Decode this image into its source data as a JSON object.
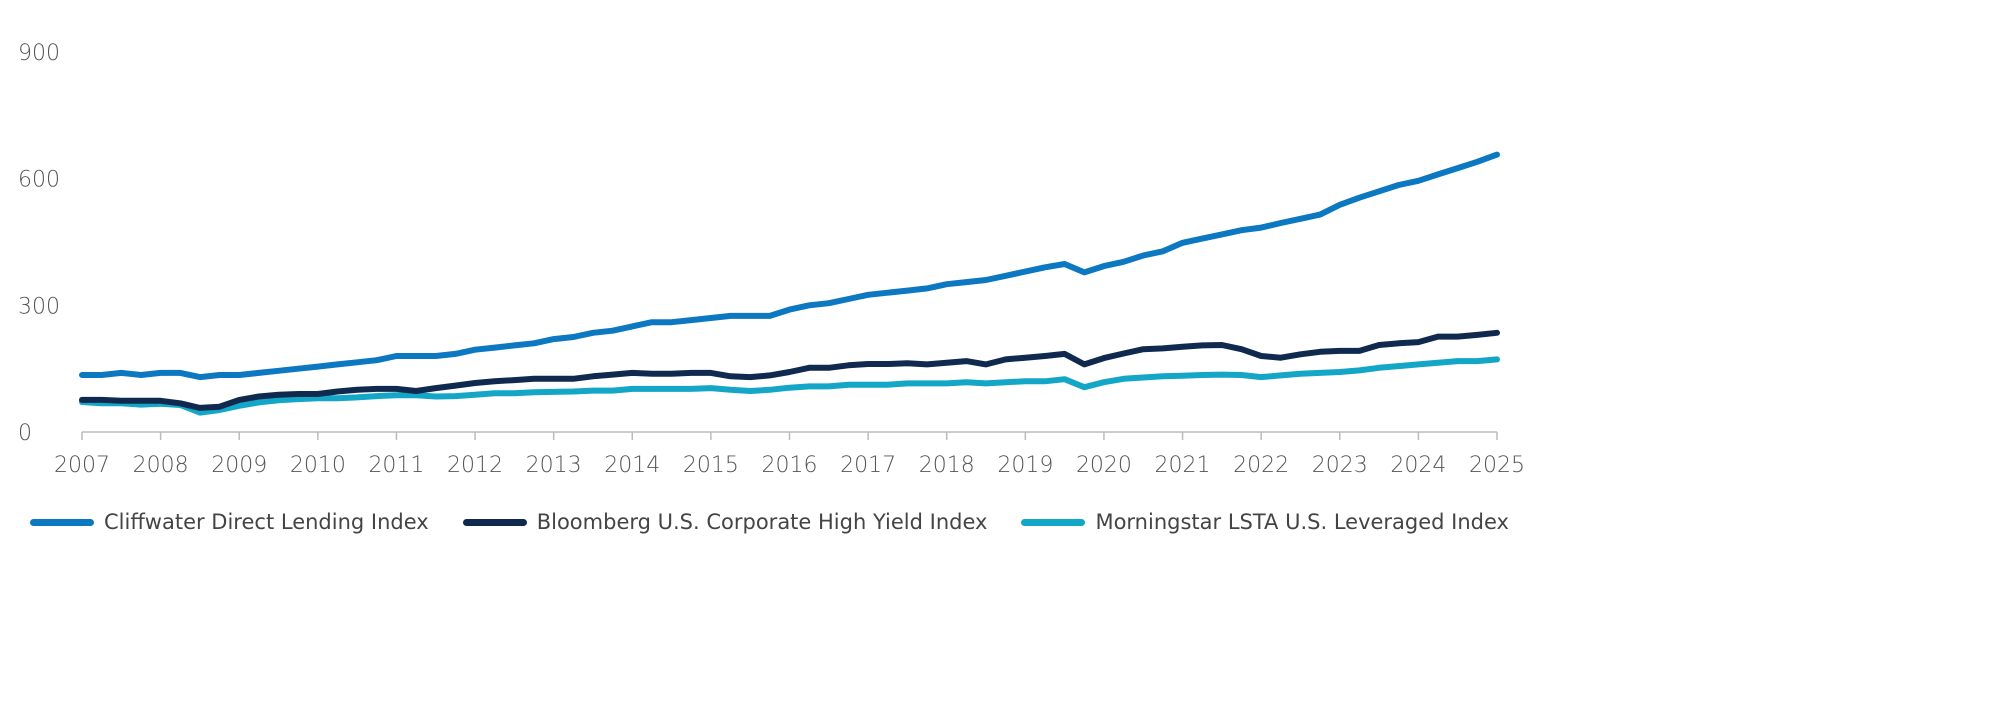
{
  "chart_data": {
    "type": "line",
    "title": "",
    "xlabel": "",
    "ylabel": "",
    "ylim": [
      0,
      900
    ],
    "yticks": [
      "0",
      "300",
      "600",
      "900"
    ],
    "xlim": [
      2007,
      2025
    ],
    "xticks": [
      "2007",
      "2008",
      "2009",
      "2010",
      "2011",
      "2012",
      "2013",
      "2014",
      "2015",
      "2016",
      "2017",
      "2018",
      "2019",
      "2020",
      "2021",
      "2022",
      "2023",
      "2024",
      "2025"
    ],
    "x_frequency": "quarterly",
    "grid": false,
    "legend_position": "bottom",
    "series": [
      {
        "name": "Cliffwater Direct Lending Index",
        "color": "#0b78c1",
        "values": [
          135,
          135,
          140,
          135,
          140,
          140,
          130,
          135,
          135,
          140,
          145,
          150,
          155,
          160,
          165,
          170,
          180,
          180,
          180,
          185,
          195,
          200,
          205,
          210,
          220,
          225,
          235,
          240,
          250,
          260,
          260,
          265,
          270,
          275,
          275,
          275,
          290,
          300,
          305,
          315,
          325,
          330,
          335,
          340,
          350,
          355,
          360,
          370,
          380,
          390,
          398,
          378,
          393,
          403,
          418,
          428,
          448,
          458,
          468,
          478,
          484,
          495,
          505,
          515,
          538,
          555,
          570,
          585,
          595,
          610,
          625,
          640,
          657
        ]
      },
      {
        "name": "Bloomberg U.S. Corporate High Yield Index",
        "color": "#102a4f",
        "values": [
          76,
          76,
          74,
          74,
          74,
          68,
          57,
          60,
          76,
          84,
          88,
          90,
          90,
          96,
          100,
          102,
          102,
          97,
          104,
          110,
          116,
          120,
          123,
          126,
          126,
          126,
          132,
          136,
          140,
          138,
          138,
          140,
          140,
          132,
          130,
          134,
          142,
          152,
          152,
          158,
          161,
          161,
          163,
          160,
          164,
          168,
          160,
          172,
          176,
          180,
          185,
          160,
          175,
          186,
          196,
          198,
          202,
          205,
          206,
          196,
          180,
          176,
          184,
          190,
          192,
          192,
          206,
          210,
          213,
          226,
          226,
          230,
          235
        ]
      },
      {
        "name": "Morningstar LSTA U.S. Leveraged Index",
        "color": "#13a6c6",
        "values": [
          71,
          68,
          68,
          65,
          67,
          64,
          46,
          52,
          62,
          70,
          75,
          78,
          80,
          80,
          82,
          85,
          87,
          87,
          84,
          85,
          88,
          92,
          92,
          94,
          95,
          96,
          98,
          98,
          102,
          102,
          102,
          102,
          104,
          100,
          97,
          100,
          105,
          108,
          108,
          112,
          112,
          112,
          115,
          115,
          115,
          118,
          115,
          118,
          120,
          120,
          125,
          106,
          118,
          126,
          129,
          132,
          133,
          135,
          136,
          135,
          130,
          134,
          138,
          140,
          142,
          146,
          152,
          156,
          160,
          164,
          168,
          168,
          172
        ]
      }
    ]
  }
}
